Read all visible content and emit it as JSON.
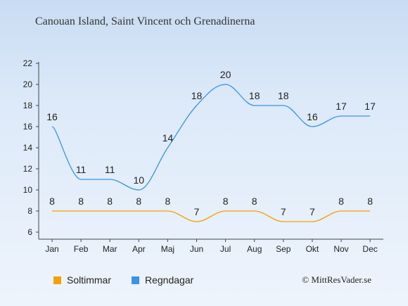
{
  "header": {
    "title": "Canouan Island, Saint Vincent och Grenadinerna"
  },
  "chart_data": {
    "type": "line",
    "categories": [
      "Jan",
      "Feb",
      "Mar",
      "Apr",
      "Maj",
      "Jun",
      "Jul",
      "Aug",
      "Sep",
      "Okt",
      "Nov",
      "Dec"
    ],
    "series": [
      {
        "name": "Soltimmar",
        "color": "#f5a000",
        "values": [
          8,
          8,
          8,
          8,
          8,
          7,
          8,
          8,
          7,
          7,
          8,
          8
        ]
      },
      {
        "name": "Regndagar",
        "color": "#3a93e6",
        "values": [
          16,
          11,
          11,
          10,
          14,
          18,
          20,
          18,
          18,
          16,
          17,
          17
        ]
      }
    ],
    "y_ticks": [
      6,
      8,
      10,
      12,
      14,
      16,
      18,
      20,
      22
    ],
    "ylim": [
      6,
      22
    ],
    "grid": false
  },
  "legend": {
    "soltimmar": "Soltimmar",
    "regndagar": "Regndagar"
  },
  "credit": "© MittResVader.se"
}
